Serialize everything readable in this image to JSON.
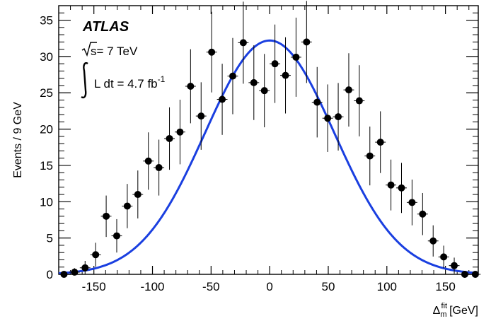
{
  "chart_data": {
    "type": "scatter",
    "ylabel": "Events / 9 GeV",
    "xlabel_main": "Δ",
    "xlabel_sub": "m",
    "xlabel_sup": "fit",
    "xlabel_unit": "[GeV]",
    "xlim": [
      -180,
      178
    ],
    "ylim": [
      0,
      37
    ],
    "x_ticks": [
      -150,
      -100,
      -50,
      0,
      50,
      100,
      150
    ],
    "y_ticks": [
      0,
      5,
      10,
      15,
      20,
      25,
      30,
      35
    ],
    "annotations": {
      "experiment": "ATLAS",
      "sqrt_s": "s= 7 TeV",
      "lumi_text": "L dt = 4.7 fb",
      "lumi_sup": "-1"
    },
    "curve": {
      "type": "gaussian",
      "color": "#1a3fe0",
      "amplitude": 32.2,
      "mean": 0,
      "sigma": 55
    },
    "series": [
      {
        "marker_color": "#000000",
        "x": [
          -175.5,
          -166.5,
          -157.5,
          -148.5,
          -139.5,
          -130.5,
          -121.5,
          -112.5,
          -103.5,
          -94.5,
          -85.5,
          -76.5,
          -67.5,
          -58.5,
          -49.5,
          -40.5,
          -31.5,
          -22.5,
          -13.5,
          -4.5,
          4.5,
          13.5,
          22.5,
          31.5,
          40.5,
          49.5,
          58.5,
          67.5,
          76.5,
          85.5,
          94.5,
          103.5,
          112.5,
          121.5,
          130.5,
          139.5,
          148.5,
          157.5,
          166.5,
          175.5
        ],
        "y": [
          0.0,
          0.3,
          0.9,
          2.7,
          8.0,
          5.3,
          9.4,
          11.0,
          15.6,
          14.7,
          18.7,
          19.6,
          25.9,
          21.8,
          30.6,
          24.1,
          27.3,
          31.9,
          26.4,
          25.3,
          29.0,
          27.4,
          29.9,
          32.0,
          23.7,
          21.5,
          21.7,
          25.4,
          23.9,
          16.3,
          18.2,
          12.3,
          11.9,
          9.9,
          8.3,
          4.6,
          2.4,
          1.2,
          0.0,
          0.0
        ],
        "y_err": [
          0.0,
          0.55,
          0.95,
          1.65,
          2.85,
          2.3,
          3.05,
          3.3,
          3.95,
          3.85,
          4.3,
          4.45,
          5.1,
          4.65,
          5.55,
          4.9,
          5.25,
          5.65,
          5.15,
          5.05,
          5.4,
          5.25,
          5.45,
          5.65,
          4.85,
          4.65,
          4.65,
          5.05,
          4.9,
          4.05,
          4.25,
          3.5,
          3.45,
          3.15,
          2.9,
          2.15,
          1.55,
          1.1,
          0.0,
          0.0
        ]
      }
    ]
  }
}
